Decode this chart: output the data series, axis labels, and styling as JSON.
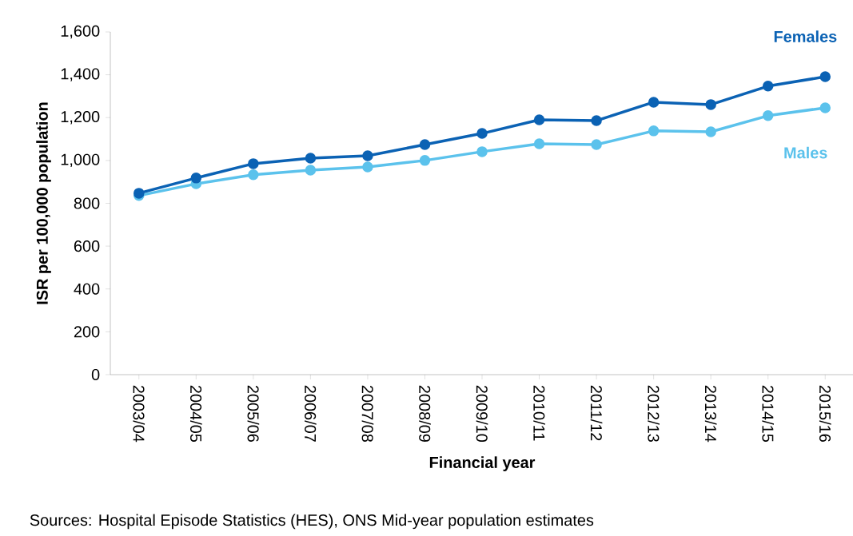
{
  "chart_data": {
    "type": "line",
    "xlabel": "Financial year",
    "ylabel": "ISR per 100,000 population",
    "categories": [
      "2003/04",
      "2004/05",
      "2005/06",
      "2006/07",
      "2007/08",
      "2008/09",
      "2009/10",
      "2010/11",
      "2011/12",
      "2012/13",
      "2013/14",
      "2014/15",
      "2015/16"
    ],
    "series": [
      {
        "name": "Females",
        "color": "#0b62b4",
        "values": [
          847,
          918,
          985,
          1011,
          1022,
          1074,
          1126,
          1190,
          1186,
          1272,
          1261,
          1347,
          1391
        ]
      },
      {
        "name": "Males",
        "color": "#5bc2ec",
        "values": [
          836,
          891,
          933,
          955,
          970,
          1000,
          1041,
          1078,
          1074,
          1138,
          1134,
          1209,
          1246
        ]
      }
    ],
    "ylim": [
      0,
      1600
    ],
    "yticks": [
      0,
      {
        "value": 200,
        "label": "200"
      },
      {
        "value": 400,
        "label": "400"
      },
      {
        "value": 600,
        "label": "600"
      },
      {
        "value": 800,
        "label": "800"
      },
      {
        "value": 1000,
        "label": "1,000"
      },
      {
        "value": 1200,
        "label": "1,200"
      },
      {
        "value": 1400,
        "label": "1,400"
      },
      {
        "value": 1600,
        "label": "1,600"
      }
    ],
    "grid": false,
    "legend": false,
    "marker": "circle",
    "line_style": "solid",
    "annotations": [
      "Sources: Hospital Episode Statistics (HES), ONS Mid-year population estimates"
    ]
  }
}
